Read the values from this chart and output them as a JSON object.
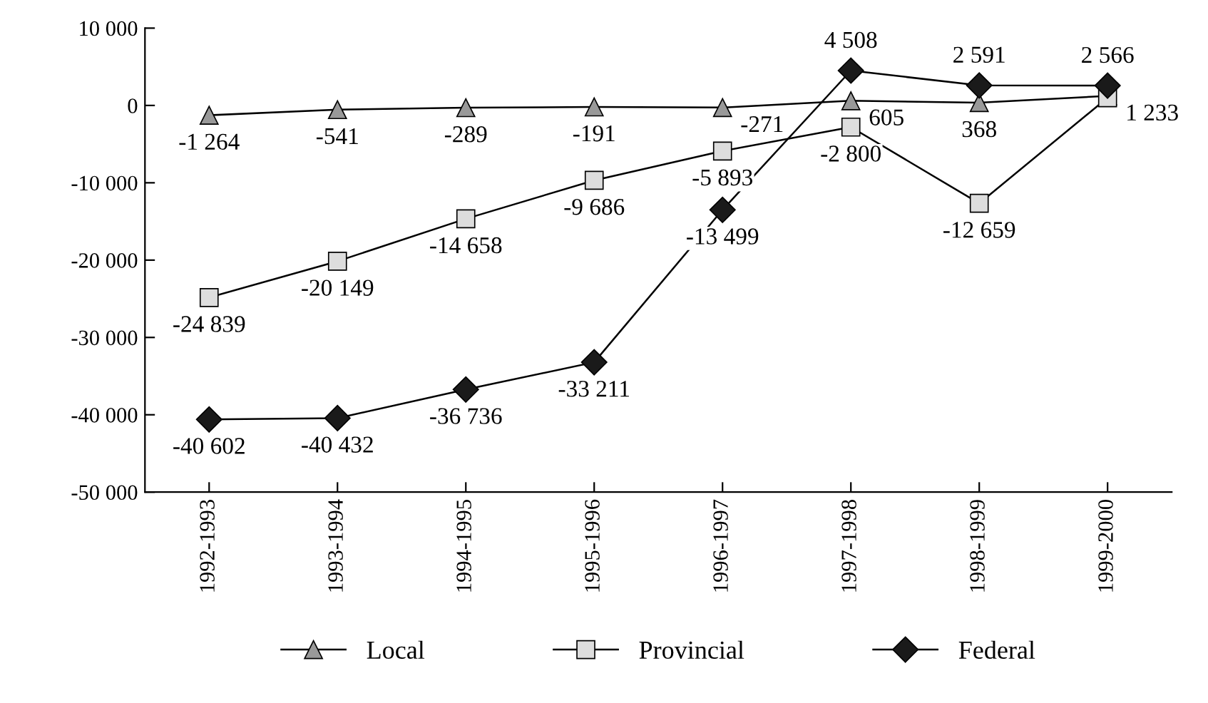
{
  "chart_data": {
    "type": "line",
    "categories": [
      "1992-1993",
      "1993-1994",
      "1994-1995",
      "1995-1996",
      "1996-1997",
      "1997-1998",
      "1998-1999",
      "1999-2000"
    ],
    "series": [
      {
        "name": "Local",
        "color": "#999999",
        "marker": "triangle",
        "values": [
          -1264,
          -541,
          -289,
          -191,
          -271,
          605,
          368,
          1233
        ],
        "value_labels": [
          "-1 264",
          "-541",
          "-289",
          "-191",
          "-271",
          "605",
          "368",
          "1 233"
        ]
      },
      {
        "name": "Provincial",
        "color": "#dddddd",
        "marker": "square",
        "values": [
          -24839,
          -20149,
          -14658,
          -9686,
          -5893,
          -2800,
          -12659,
          1000
        ],
        "value_labels": [
          "-24 839",
          "-20 149",
          "-14 658",
          "-9 686",
          "-5 893",
          "-2 800",
          "-12 659",
          null
        ]
      },
      {
        "name": "Federal",
        "color": "#1a1a1a",
        "marker": "diamond",
        "values": [
          -40602,
          -40432,
          -36736,
          -33211,
          -13499,
          4508,
          2591,
          2566
        ],
        "value_labels": [
          "-40 602",
          "-40 432",
          "-36 736",
          "-33 211",
          "-13 499",
          "4 508",
          "2 591",
          "2 566"
        ]
      }
    ],
    "ylim": [
      -50000,
      10000
    ],
    "yticks": [
      {
        "value": -50000,
        "label": "-50 000"
      },
      {
        "value": -40000,
        "label": "-40 000"
      },
      {
        "value": -30000,
        "label": "-30 000"
      },
      {
        "value": -20000,
        "label": "-20 000"
      },
      {
        "value": -10000,
        "label": "-10 000"
      },
      0,
      {
        "value": 10000,
        "label": "10 000"
      }
    ],
    "grid": false,
    "legend": "bottom",
    "line_style": "solid"
  }
}
